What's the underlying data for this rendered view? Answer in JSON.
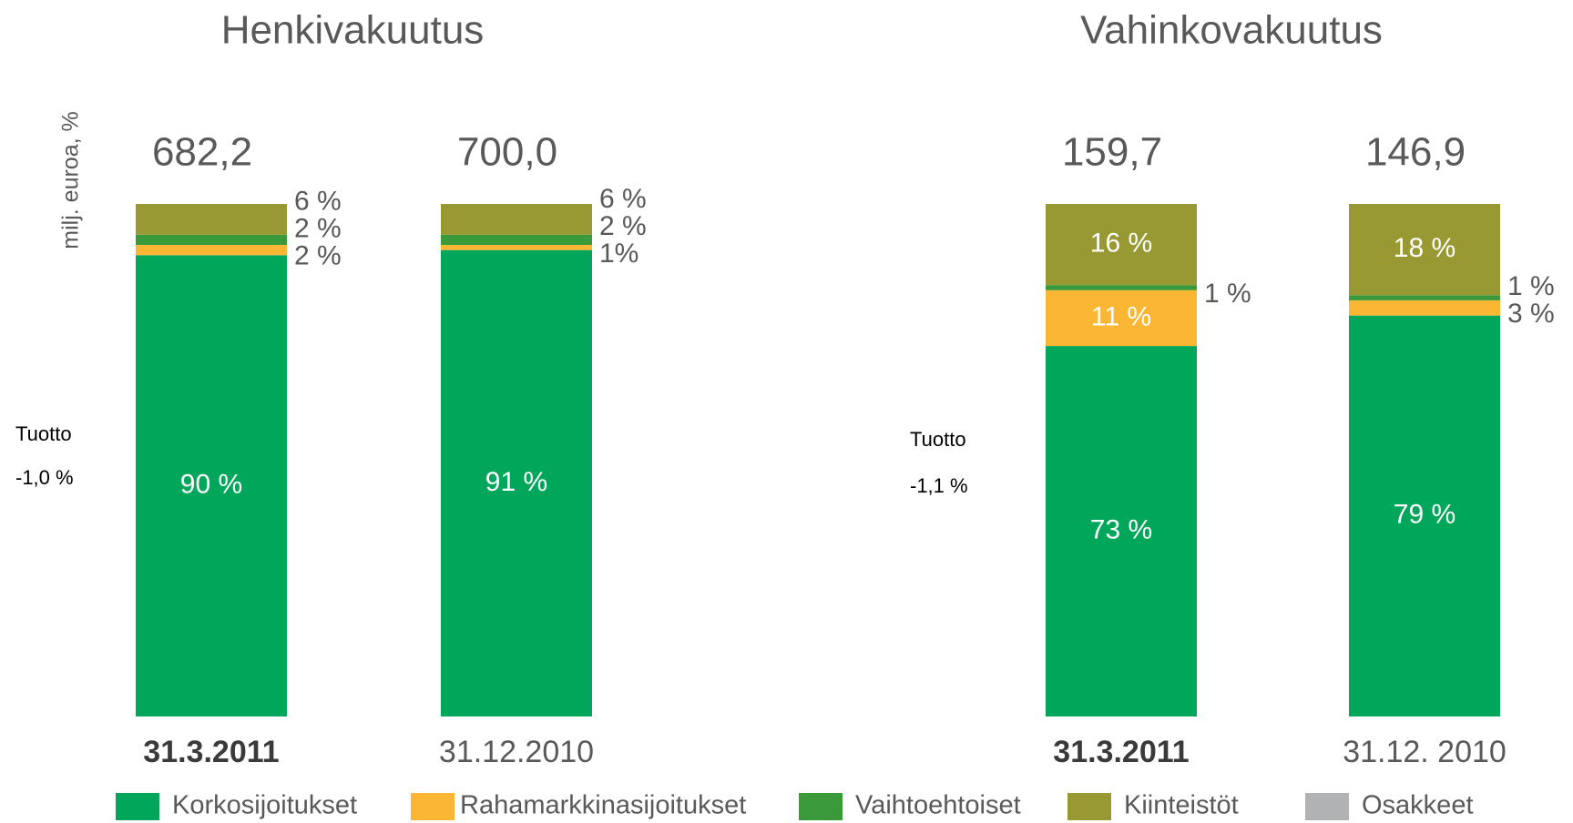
{
  "chart_data": [
    {
      "type": "stacked_bar",
      "title": "Henkivakuutus",
      "y_label": "milj. euroa, %",
      "categories": [
        "31.3.2011",
        "31.12.2010"
      ],
      "totals": [
        {
          "value": 682.2,
          "label": "682,2"
        },
        {
          "value": 700.0,
          "label": "700,0"
        }
      ],
      "annotations": [
        "Tuotto",
        "-1,0 %"
      ],
      "ylim": [
        0,
        100
      ],
      "series": [
        {
          "name": "Korkosijoitukset",
          "color": "#00a65a",
          "values": [
            90,
            91
          ],
          "value_labels": [
            "90 %",
            "91 %"
          ]
        },
        {
          "name": "Rahamarkkinasijoitukset",
          "color": "#fbb634",
          "values": [
            2,
            1
          ],
          "value_labels": [
            "2 %",
            "1%"
          ]
        },
        {
          "name": "Vaihtoehtoiset",
          "color": "#3a9a3a",
          "values": [
            2,
            2
          ],
          "value_labels": [
            "2 %",
            "2 %"
          ]
        },
        {
          "name": "Kiinteistöt",
          "color": "#999933",
          "values": [
            6,
            6
          ],
          "value_labels": [
            "6 %",
            "6 %"
          ]
        },
        {
          "name": "Osakkeet",
          "color": "#b1b2b4",
          "values": [
            0,
            0
          ]
        }
      ]
    },
    {
      "type": "stacked_bar",
      "title": "Vahinkovakuutus",
      "categories": [
        "31.3.2011",
        "31.12. 2010"
      ],
      "totals": [
        {
          "value": 159.7,
          "label": "159,7"
        },
        {
          "value": 146.9,
          "label": "146,9"
        }
      ],
      "annotations": [
        "Tuotto",
        "-1,1 %"
      ],
      "ylim": [
        0,
        101
      ],
      "series": [
        {
          "color": "#00a65a",
          "values": [
            73,
            79
          ],
          "value_labels": [
            "73 %",
            "79 %"
          ]
        },
        {
          "color": "#fbb634",
          "values": [
            11,
            3
          ],
          "value_labels": [
            "11 %",
            "3 %"
          ]
        },
        {
          "color": "#3a9a3a",
          "values": [
            1,
            1
          ],
          "value_labels": [
            "1 %",
            "1 %"
          ]
        },
        {
          "color": "#999933",
          "values": [
            16,
            18
          ],
          "value_labels": [
            "16 %",
            "18 %"
          ]
        },
        {
          "color": "#b1b2b4",
          "values": [
            0,
            0
          ]
        }
      ]
    }
  ]
}
